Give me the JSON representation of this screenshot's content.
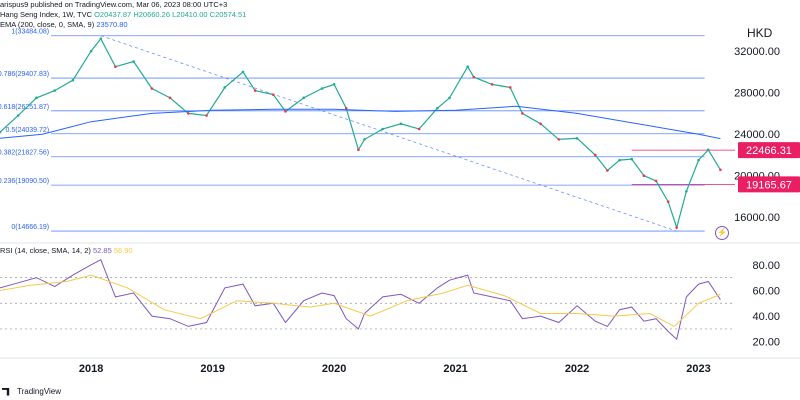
{
  "header": {
    "published": "arispus9 published on TradingView.com, Mar 06, 2023 08:00 UTC+3",
    "symbol": "Hang Seng Index, 1W, TVC",
    "ohlc": [
      "O20437.87",
      "H20660.26",
      "L20410.00",
      "C20574.51"
    ],
    "ema_label": "EMA (200, close, 0, SMA, 9)",
    "ema_value": "23570.80",
    "rsi_label": "RSI (14, close, SMA, 14, 2)",
    "rsi_value": "52.85",
    "rsi_sma_value": "56.90",
    "currency": "HKD",
    "footer": "TradingView",
    "bolt_icon": "lightning-icon"
  },
  "chart_data": {
    "type": "line",
    "x_ticks": [
      "2018",
      "2019",
      "2020",
      "2021",
      "2022",
      "2023"
    ],
    "price_axis": {
      "ticks": [
        "32000.00",
        "28000.00",
        "24000.00",
        "20000.00",
        "16000.00"
      ],
      "range": [
        14000,
        35000
      ]
    },
    "fib_levels": [
      {
        "label": "1(33484.08)",
        "value": 33484.08
      },
      {
        "label": "0.786(29407.83)",
        "value": 29407.83
      },
      {
        "label": "0.618(26251.87)",
        "value": 26251.87
      },
      {
        "label": "0.5(24039.72)",
        "value": 24039.72
      },
      {
        "label": "0.382(21827.56)",
        "value": 21827.56
      },
      {
        "label": "0.236(19090.50)",
        "value": 19090.5
      },
      {
        "label": "0(14666.19)",
        "value": 14666.19
      }
    ],
    "price_tags": [
      {
        "label": "22466.31",
        "value": 22466.31,
        "color": "#e91e63"
      },
      {
        "label": "19165.67",
        "value": 19165.67,
        "color": "#e91e63"
      }
    ],
    "series": [
      {
        "name": "Hang Seng Index",
        "color": "#22ab94",
        "x": [
          2017.25,
          2017.4,
          2017.55,
          2017.7,
          2017.85,
          2018.0,
          2018.08,
          2018.2,
          2018.35,
          2018.5,
          2018.65,
          2018.8,
          2018.95,
          2019.1,
          2019.25,
          2019.35,
          2019.5,
          2019.6,
          2019.75,
          2019.9,
          2020.0,
          2020.1,
          2020.2,
          2020.25,
          2020.4,
          2020.55,
          2020.7,
          2020.85,
          2020.95,
          2021.1,
          2021.15,
          2021.3,
          2021.45,
          2021.55,
          2021.7,
          2021.85,
          2022.0,
          2022.15,
          2022.25,
          2022.35,
          2022.45,
          2022.55,
          2022.65,
          2022.75,
          2022.82,
          2022.9,
          2023.0,
          2023.08,
          2023.18
        ],
        "values": [
          24200,
          25800,
          27500,
          28200,
          29200,
          32000,
          33200,
          30500,
          31000,
          28400,
          27500,
          26000,
          25800,
          28500,
          30000,
          28200,
          27800,
          26200,
          27500,
          28400,
          28800,
          26500,
          22500,
          23500,
          24500,
          25000,
          24500,
          26500,
          27500,
          30500,
          29500,
          28800,
          28500,
          26000,
          25000,
          23500,
          23600,
          22000,
          20500,
          21500,
          21600,
          20000,
          19500,
          17500,
          15000,
          18500,
          21500,
          22500,
          20574
        ]
      },
      {
        "name": "EMA (200)",
        "color": "#2962ff",
        "x": [
          2017.25,
          2017.6,
          2018.0,
          2018.5,
          2019.0,
          2019.5,
          2020.0,
          2020.5,
          2021.0,
          2021.5,
          2022.0,
          2022.5,
          2023.0,
          2023.18
        ],
        "values": [
          23600,
          24000,
          25200,
          26000,
          26300,
          26400,
          26400,
          26200,
          26300,
          26700,
          26000,
          25000,
          24000,
          23570.8
        ]
      }
    ],
    "rsi": {
      "axis_ticks": [
        "80.00",
        "60.00",
        "40.00",
        "20.00"
      ],
      "range": [
        12,
        90
      ],
      "levels": [
        70,
        50,
        30
      ],
      "series": [
        {
          "name": "RSI",
          "color": "#7e57c2",
          "x": [
            2017.25,
            2017.4,
            2017.55,
            2017.7,
            2017.85,
            2018.0,
            2018.08,
            2018.2,
            2018.35,
            2018.5,
            2018.65,
            2018.8,
            2018.95,
            2019.1,
            2019.25,
            2019.35,
            2019.5,
            2019.6,
            2019.75,
            2019.9,
            2020.0,
            2020.1,
            2020.2,
            2020.25,
            2020.4,
            2020.55,
            2020.7,
            2020.85,
            2020.95,
            2021.1,
            2021.15,
            2021.3,
            2021.45,
            2021.55,
            2021.7,
            2021.85,
            2022.0,
            2022.15,
            2022.25,
            2022.35,
            2022.45,
            2022.55,
            2022.65,
            2022.75,
            2022.82,
            2022.9,
            2023.0,
            2023.08,
            2023.18
          ],
          "values": [
            62,
            66,
            70,
            63,
            72,
            80,
            84,
            55,
            58,
            40,
            38,
            32,
            35,
            62,
            65,
            48,
            50,
            35,
            52,
            58,
            56,
            38,
            30,
            42,
            55,
            57,
            50,
            62,
            68,
            72,
            58,
            55,
            52,
            38,
            40,
            35,
            48,
            36,
            32,
            45,
            47,
            36,
            38,
            28,
            22,
            55,
            65,
            67,
            52.85
          ]
        },
        {
          "name": "RSI SMA",
          "color": "#f7c948",
          "x": [
            2017.25,
            2017.5,
            2017.8,
            2018.0,
            2018.3,
            2018.6,
            2018.9,
            2019.2,
            2019.5,
            2019.8,
            2020.0,
            2020.3,
            2020.6,
            2020.9,
            2021.1,
            2021.4,
            2021.7,
            2022.0,
            2022.3,
            2022.6,
            2022.8,
            2023.0,
            2023.18
          ],
          "values": [
            60,
            64,
            67,
            72,
            62,
            45,
            38,
            52,
            50,
            47,
            50,
            40,
            52,
            58,
            64,
            56,
            42,
            42,
            40,
            42,
            32,
            50,
            56.9
          ]
        }
      ]
    }
  }
}
